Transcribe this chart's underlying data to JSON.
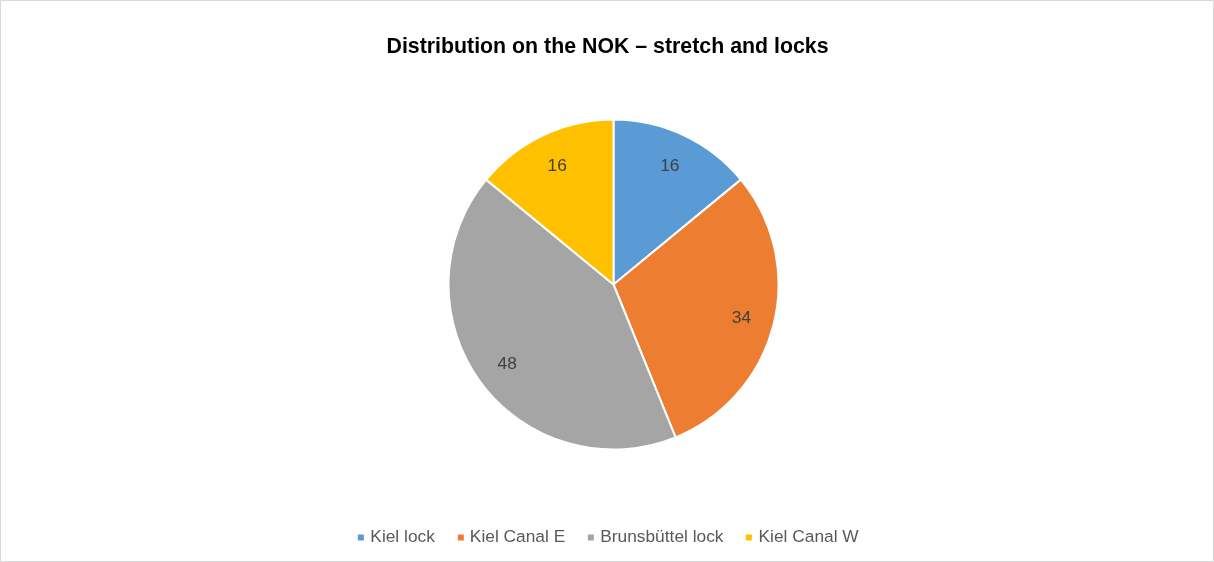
{
  "chart_data": {
    "type": "pie",
    "title": "Distribution on the NOK – stretch and locks",
    "categories": [
      "Kiel lock",
      "Kiel Canal E",
      "Brunsbüttel lock",
      "Kiel Canal W"
    ],
    "values": [
      16,
      34,
      48,
      16
    ],
    "colors": [
      "#5b9bd5",
      "#ed7d31",
      "#a5a5a5",
      "#ffc000"
    ],
    "data_labels": true,
    "legend": "bottom"
  }
}
